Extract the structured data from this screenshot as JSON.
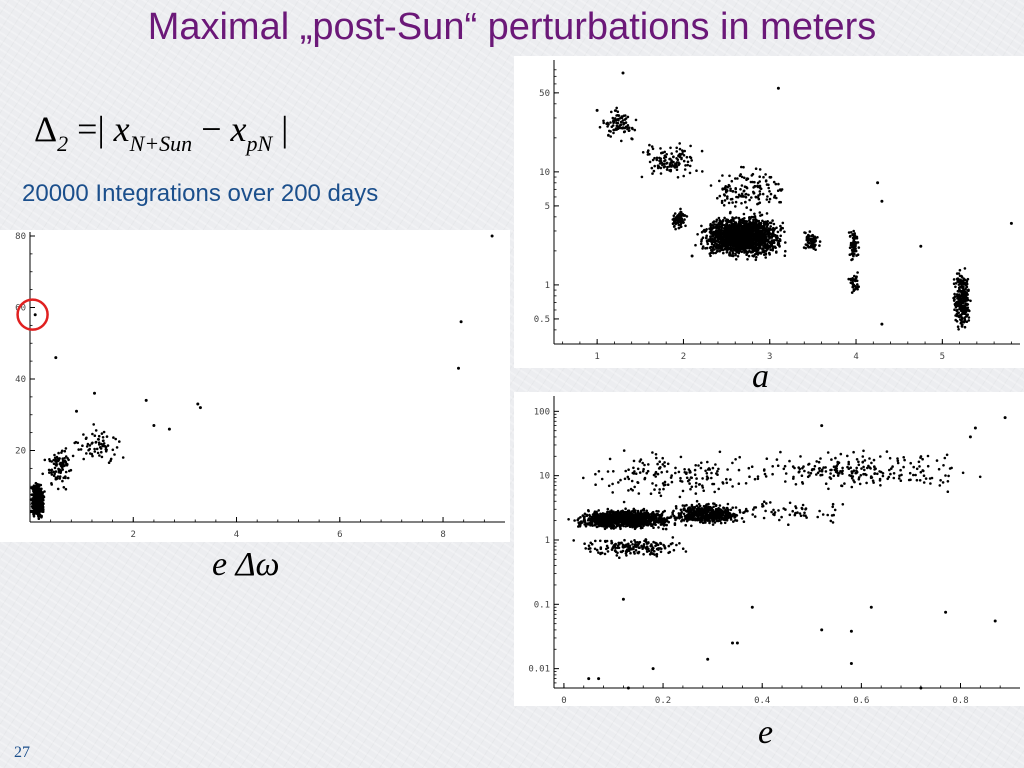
{
  "slide": {
    "title": "Maximal „post-Sun“ perturbations in meters",
    "formula": {
      "delta": "Δ",
      "delta_sub": "2",
      "eq": "=|",
      "x1": "x",
      "x1_sub": "N+Sun",
      "minus": "−",
      "x2": "x",
      "x2_sub": "pN",
      "close": "|"
    },
    "subtitle": "20000 Integrations over  200 days",
    "page_number": "27"
  },
  "colors": {
    "title": "#6b1878",
    "subtitle": "#1b4f8c",
    "points": "#000000",
    "highlight_circle": "#e02020"
  },
  "chart_data": [
    {
      "id": "perturbation-vs-e-domega",
      "type": "scatter",
      "xlabel": "e Δω",
      "ylabel": "",
      "xlim": [
        0,
        9.2
      ],
      "ylim": [
        0,
        80
      ],
      "log_y": false,
      "x_ticks": [
        "2",
        "4",
        "6",
        "8"
      ],
      "x_tick_values": [
        2,
        4,
        6,
        8
      ],
      "y_ticks": [
        "20",
        "40",
        "60",
        "80"
      ],
      "y_tick_values": [
        20,
        40,
        60,
        80
      ],
      "highlight": {
        "x": 0.05,
        "y": 58,
        "shape": "circle"
      },
      "outliers": [
        [
          0.1,
          58
        ],
        [
          0.5,
          46
        ],
        [
          0.9,
          31
        ],
        [
          1.25,
          36
        ],
        [
          2.25,
          34
        ],
        [
          2.4,
          27
        ],
        [
          2.7,
          26
        ],
        [
          3.25,
          33
        ],
        [
          3.3,
          32
        ],
        [
          8.3,
          43
        ],
        [
          8.35,
          56
        ],
        [
          8.95,
          80
        ]
      ],
      "clusters": [
        {
          "x": [
            0,
            0.3
          ],
          "y": [
            0,
            12
          ],
          "n": 480
        },
        {
          "x": [
            0.2,
            0.9
          ],
          "y": [
            8,
            22
          ],
          "n": 90
        },
        {
          "x": [
            0.6,
            1.9
          ],
          "y": [
            15,
            28
          ],
          "n": 70
        }
      ]
    },
    {
      "id": "perturbation-vs-a",
      "type": "scatter",
      "xlabel": "a",
      "ylabel": "",
      "xlim": [
        0.5,
        5.9
      ],
      "ylim": [
        0.3,
        90
      ],
      "log_y": true,
      "x_ticks": [
        "1",
        "2",
        "3",
        "4",
        "5"
      ],
      "x_tick_values": [
        1,
        2,
        3,
        4,
        5
      ],
      "y_ticks": [
        "0.5",
        "1",
        "5",
        "10",
        "50"
      ],
      "y_tick_values": [
        0.5,
        1,
        5,
        10,
        50
      ],
      "outliers": [
        [
          1.3,
          75
        ],
        [
          3.1,
          55
        ],
        [
          1.0,
          35
        ],
        [
          4.25,
          8
        ],
        [
          4.3,
          5.5
        ],
        [
          5.8,
          3.5
        ],
        [
          4.75,
          2.2
        ],
        [
          2.1,
          1.8
        ],
        [
          4.3,
          0.45
        ]
      ],
      "clusters": [
        {
          "x": [
            1.0,
            1.5
          ],
          "y": [
            18,
            40
          ],
          "log": true,
          "n": 90
        },
        {
          "x": [
            1.4,
            2.3
          ],
          "y": [
            8,
            20
          ],
          "log": true,
          "n": 120
        },
        {
          "x": [
            1.85,
            2.05
          ],
          "y": [
            3.0,
            5.0
          ],
          "log": true,
          "n": 90
        },
        {
          "x": [
            2.1,
            3.25
          ],
          "y": [
            1.6,
            4.5
          ],
          "log": true,
          "n": 1700
        },
        {
          "x": [
            2.2,
            3.4
          ],
          "y": [
            4,
            12
          ],
          "log": true,
          "n": 140
        },
        {
          "x": [
            3.35,
            3.6
          ],
          "y": [
            1.8,
            3.2
          ],
          "log": true,
          "n": 70
        },
        {
          "x": [
            3.9,
            4.05
          ],
          "y": [
            1.5,
            3.2
          ],
          "log": true,
          "n": 70
        },
        {
          "x": [
            3.9,
            4.05
          ],
          "y": [
            0.8,
            1.4
          ],
          "log": true,
          "n": 35
        },
        {
          "x": [
            5.1,
            5.35
          ],
          "y": [
            0.35,
            1.6
          ],
          "log": true,
          "n": 260
        }
      ]
    },
    {
      "id": "perturbation-vs-e",
      "type": "scatter",
      "xlabel": "e",
      "ylabel": "",
      "xlim": [
        -0.02,
        0.92
      ],
      "ylim": [
        0.005,
        150
      ],
      "log_y": true,
      "x_ticks": [
        "0",
        "0.2",
        "0.4",
        "0.6",
        "0.8"
      ],
      "x_tick_values": [
        0,
        0.2,
        0.4,
        0.6,
        0.8
      ],
      "y_ticks": [
        "0.01",
        "0.1",
        "1",
        "10",
        "100"
      ],
      "y_tick_values": [
        0.01,
        0.1,
        1,
        10,
        100
      ],
      "outliers": [
        [
          0.89,
          80
        ],
        [
          0.83,
          55
        ],
        [
          0.82,
          40
        ],
        [
          0.52,
          60
        ],
        [
          0.12,
          0.12
        ],
        [
          0.38,
          0.09
        ],
        [
          0.62,
          0.09
        ],
        [
          0.77,
          0.075
        ],
        [
          0.87,
          0.055
        ],
        [
          0.52,
          0.04
        ],
        [
          0.58,
          0.038
        ],
        [
          0.34,
          0.025
        ],
        [
          0.35,
          0.025
        ],
        [
          0.29,
          0.014
        ],
        [
          0.18,
          0.01
        ],
        [
          0.58,
          0.012
        ],
        [
          0.05,
          0.007
        ],
        [
          0.07,
          0.007
        ],
        [
          0.13,
          0.005
        ],
        [
          0.72,
          0.005
        ]
      ],
      "clusters": [
        {
          "x": [
            0.0,
            0.25
          ],
          "y": [
            1.4,
            3.2
          ],
          "log": true,
          "n": 1100
        },
        {
          "x": [
            0.2,
            0.38
          ],
          "y": [
            1.6,
            4.0
          ],
          "log": true,
          "n": 500
        },
        {
          "x": [
            0.0,
            0.28
          ],
          "y": [
            0.5,
            1.2
          ],
          "log": true,
          "n": 180
        },
        {
          "x": [
            0.0,
            0.45
          ],
          "y": [
            3,
            30
          ],
          "log": true,
          "n": 160
        },
        {
          "x": [
            0.3,
            0.88
          ],
          "y": [
            5,
            30
          ],
          "log": true,
          "n": 230
        },
        {
          "x": [
            0.3,
            0.6
          ],
          "y": [
            1.5,
            5
          ],
          "log": true,
          "n": 60
        }
      ]
    }
  ]
}
